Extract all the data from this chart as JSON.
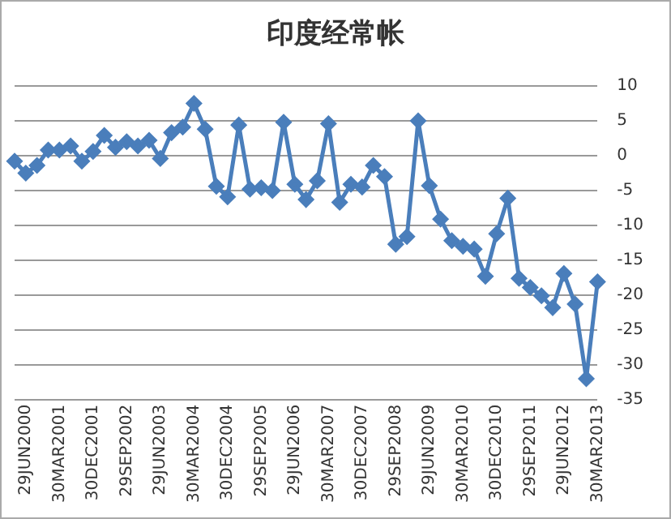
{
  "chart_data": {
    "type": "line",
    "title": "印度经常帐",
    "categories": [
      null,
      "29JUN2000",
      null,
      null,
      "30MAR2001",
      null,
      null,
      "30DEC2001",
      null,
      null,
      "29SEP2002",
      null,
      null,
      "29JUN2003",
      null,
      null,
      "30MAR2004",
      null,
      null,
      "30DEC2004",
      null,
      null,
      "29SEP2005",
      null,
      null,
      "29JUN2006",
      null,
      null,
      "30MAR2007",
      null,
      null,
      "30DEC2007",
      null,
      null,
      "29SEP2008",
      null,
      null,
      "29JUN2009",
      null,
      null,
      "30MAR2010",
      null,
      null,
      "30DEC2010",
      null,
      null,
      "29SEP2011",
      null,
      null,
      "29JUN2012",
      null,
      null,
      "30MAR2013"
    ],
    "series": [
      {
        "color": "#4a7ebb",
        "values": [
          -0.8,
          -2.5,
          -1.4,
          0.8,
          0.8,
          1.4,
          -0.8,
          0.6,
          2.9,
          1.2,
          2.0,
          1.4,
          2.2,
          -0.4,
          3.3,
          4.1,
          7.5,
          3.8,
          -4.4,
          -5.9,
          4.4,
          -4.8,
          -4.6,
          -5.0,
          4.8,
          -4.1,
          -6.3,
          -3.6,
          4.6,
          -6.7,
          -4.1,
          -4.5,
          -1.4,
          -3.0,
          -12.7,
          -11.6,
          5.0,
          -4.3,
          -9.1,
          -12.2,
          -13.0,
          -13.4,
          -17.3,
          -11.2,
          -6.1,
          -17.6,
          -18.9,
          -20.1,
          -21.8,
          -16.9,
          -21.3,
          -32.0,
          -18.1
        ]
      }
    ],
    "ylim": [
      -35,
      10
    ],
    "yticks": [
      -35,
      -30,
      -25,
      -20,
      -15,
      -10,
      -5,
      0,
      5,
      10
    ],
    "grid": "y",
    "legend": false,
    "marker": "diamond",
    "line_style": "solid"
  }
}
